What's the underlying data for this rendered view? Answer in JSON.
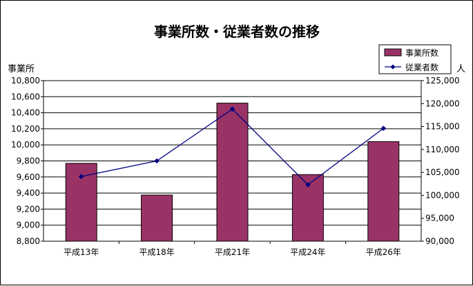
{
  "chart_data": {
    "type": "bar",
    "title": "事業所数・従業者数の推移",
    "categories": [
      "平成13年",
      "平成18年",
      "平成21年",
      "平成24年",
      "平成26年"
    ],
    "series": [
      {
        "name": "事業所数",
        "type": "bar",
        "axis": "left",
        "color": "#993366",
        "values": [
          9770,
          9375,
          10520,
          9630,
          10040
        ]
      },
      {
        "name": "従業者数",
        "type": "line",
        "axis": "right",
        "color": "#000080",
        "values": [
          104100,
          107500,
          118800,
          102300,
          114600
        ]
      }
    ],
    "ylabel": "事業所",
    "y2label": "人",
    "ylim": [
      8800,
      10800
    ],
    "y2lim": [
      90000,
      125000
    ],
    "yticks": [
      "8,800",
      "9,000",
      "9,200",
      "9,400",
      "9,600",
      "9,800",
      "10,000",
      "10,200",
      "10,400",
      "10,600",
      "10,800"
    ],
    "y2ticks": [
      "90,000",
      "95,000",
      "100,000",
      "105,000",
      "110,000",
      "115,000",
      "120,000",
      "125,000"
    ],
    "grid": true,
    "legend": "top-right"
  }
}
